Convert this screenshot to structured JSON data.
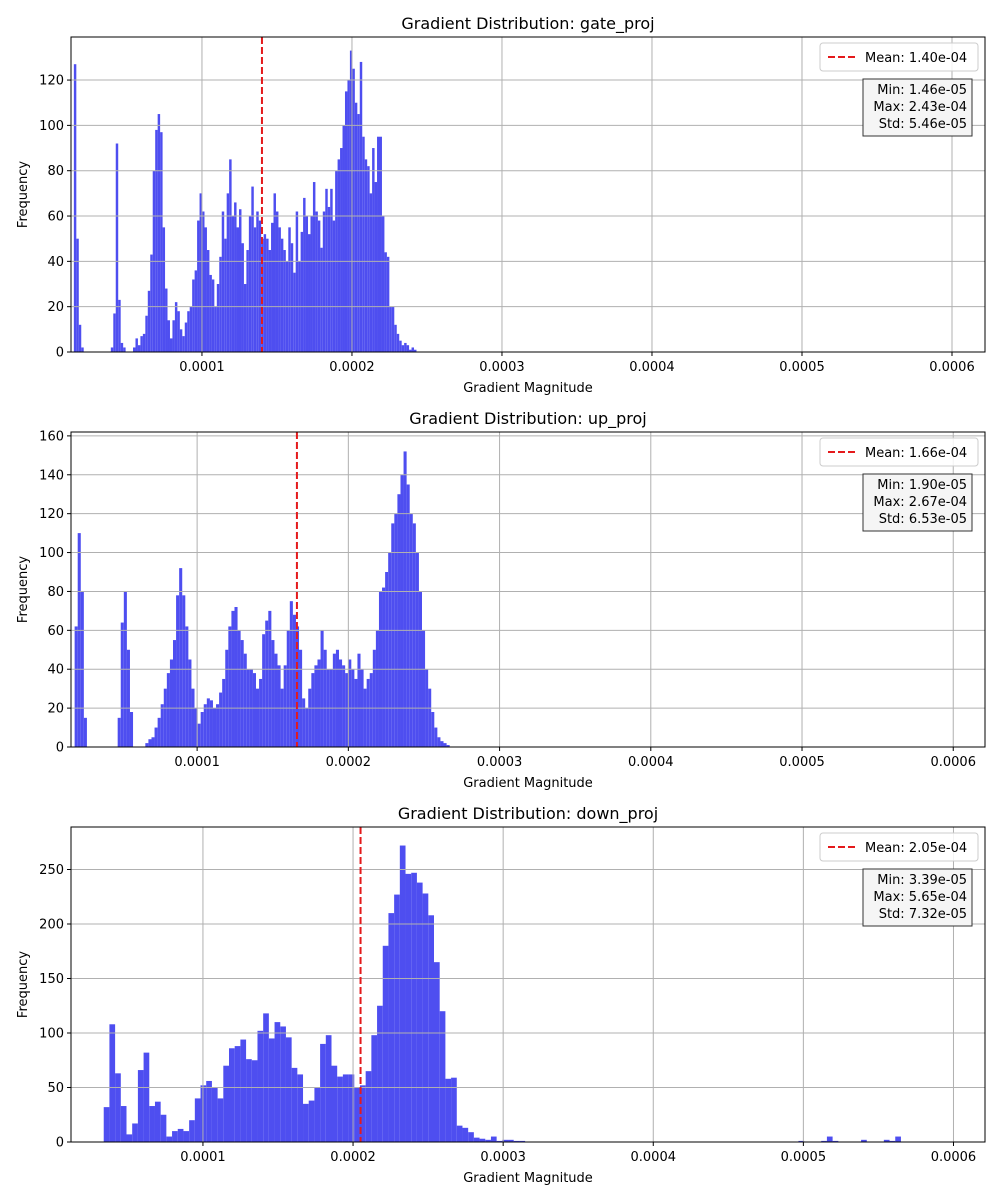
{
  "chart_data": [
    {
      "type": "bar",
      "title": "Gradient Distribution: gate_proj",
      "xlabel": "Gradient Magnitude",
      "ylabel": "Frequency",
      "xlim": [
        1.27e-05,
        0.000622
      ],
      "ylim": [
        0,
        139
      ],
      "xticks": [
        {
          "value": 0.0001,
          "label": "0.0001"
        },
        {
          "value": 0.0002,
          "label": "0.0002"
        },
        {
          "value": 0.0003,
          "label": "0.0003"
        },
        {
          "value": 0.0004,
          "label": "0.0004"
        },
        {
          "value": 0.0005,
          "label": "0.0005"
        },
        {
          "value": 0.0006,
          "label": "0.0006"
        }
      ],
      "yticks": [
        {
          "value": 0,
          "label": "0"
        },
        {
          "value": 20,
          "label": "20"
        },
        {
          "value": 40,
          "label": "40"
        },
        {
          "value": 60,
          "label": "60"
        },
        {
          "value": 80,
          "label": "80"
        },
        {
          "value": 100,
          "label": "100"
        },
        {
          "value": 120,
          "label": "120"
        }
      ],
      "grid": true,
      "bar_color": "#4a4af0",
      "mean": {
        "value": 0.00014,
        "label": "Mean: 1.40e-04",
        "color": "#e41a1c"
      },
      "legend_position": "upper right",
      "stats_box": [
        "Min: 1.46e-05",
        "Max: 2.43e-04",
        "Std: 5.46e-05"
      ],
      "hist": {
        "start": 1.46e-05,
        "end": 0.000243,
        "counts": [
          127,
          50,
          12,
          2,
          0,
          0,
          0,
          0,
          0,
          0,
          0,
          0,
          0,
          0,
          0,
          2,
          17,
          92,
          23,
          4,
          2,
          0,
          0,
          0,
          2,
          6,
          3,
          7,
          8,
          16,
          27,
          43,
          80,
          98,
          105,
          97,
          55,
          28,
          14,
          6,
          14,
          22,
          18,
          10,
          7,
          13,
          18,
          20,
          32,
          36,
          58,
          70,
          62,
          55,
          45,
          34,
          32,
          20,
          30,
          42,
          62,
          50,
          70,
          85,
          60,
          66,
          55,
          63,
          48,
          30,
          45,
          60,
          73,
          55,
          62,
          58,
          50,
          52,
          50,
          45,
          57,
          70,
          62,
          55,
          50,
          45,
          40,
          55,
          48,
          35,
          62,
          40,
          53,
          68,
          60,
          52,
          60,
          75,
          62,
          58,
          46,
          62,
          72,
          64,
          72,
          58,
          80,
          85,
          90,
          100,
          115,
          120,
          133,
          125,
          110,
          105,
          128,
          95,
          85,
          82,
          70,
          90,
          75,
          95,
          95,
          60,
          44,
          42,
          20,
          20,
          12,
          8,
          5,
          3,
          4,
          3,
          1,
          2,
          1
        ]
      }
    },
    {
      "type": "bar",
      "title": "Gradient Distribution: up_proj",
      "xlabel": "Gradient Magnitude",
      "ylabel": "Frequency",
      "xlim": [
        1.66e-05,
        0.000621
      ],
      "ylim": [
        0,
        162
      ],
      "xticks": [
        {
          "value": 0.0001,
          "label": "0.0001"
        },
        {
          "value": 0.0002,
          "label": "0.0002"
        },
        {
          "value": 0.0003,
          "label": "0.0003"
        },
        {
          "value": 0.0004,
          "label": "0.0004"
        },
        {
          "value": 0.0005,
          "label": "0.0005"
        },
        {
          "value": 0.0006,
          "label": "0.0006"
        }
      ],
      "yticks": [
        {
          "value": 0,
          "label": "0"
        },
        {
          "value": 20,
          "label": "20"
        },
        {
          "value": 40,
          "label": "40"
        },
        {
          "value": 60,
          "label": "60"
        },
        {
          "value": 80,
          "label": "80"
        },
        {
          "value": 100,
          "label": "100"
        },
        {
          "value": 120,
          "label": "120"
        },
        {
          "value": 140,
          "label": "140"
        },
        {
          "value": 160,
          "label": "160"
        }
      ],
      "grid": true,
      "bar_color": "#4a4af0",
      "mean": {
        "value": 0.000166,
        "label": "Mean: 1.66e-04",
        "color": "#e41a1c"
      },
      "legend_position": "upper right",
      "stats_box": [
        "Min: 1.90e-05",
        "Max: 2.67e-04",
        "Std: 6.53e-05"
      ],
      "hist": {
        "start": 1.9e-05,
        "end": 0.000267,
        "counts": [
          62,
          110,
          80,
          15,
          0,
          0,
          0,
          0,
          0,
          0,
          0,
          0,
          0,
          0,
          15,
          64,
          80,
          50,
          18,
          0,
          0,
          0,
          0,
          2,
          4,
          5,
          10,
          15,
          22,
          30,
          38,
          45,
          55,
          78,
          92,
          78,
          62,
          45,
          30,
          20,
          12,
          18,
          22,
          25,
          24,
          20,
          22,
          28,
          35,
          50,
          62,
          70,
          72,
          60,
          55,
          48,
          40,
          40,
          38,
          30,
          35,
          58,
          65,
          70,
          55,
          48,
          42,
          30,
          42,
          60,
          75,
          68,
          62,
          50,
          25,
          20,
          30,
          38,
          42,
          45,
          60,
          50,
          40,
          40,
          48,
          50,
          45,
          42,
          38,
          45,
          40,
          35,
          48,
          40,
          30,
          35,
          38,
          50,
          60,
          80,
          82,
          90,
          100,
          115,
          120,
          130,
          140,
          152,
          135,
          120,
          115,
          100,
          80,
          60,
          40,
          30,
          18,
          10,
          5,
          3,
          2,
          1
        ]
      }
    },
    {
      "type": "bar",
      "title": "Gradient Distribution: down_proj",
      "xlabel": "Gradient Magnitude",
      "ylabel": "Frequency",
      "xlim": [
        1.21e-05,
        0.000621
      ],
      "ylim": [
        0,
        289
      ],
      "xticks": [
        {
          "value": 0.0001,
          "label": "0.0001"
        },
        {
          "value": 0.0002,
          "label": "0.0002"
        },
        {
          "value": 0.0003,
          "label": "0.0003"
        },
        {
          "value": 0.0004,
          "label": "0.0004"
        },
        {
          "value": 0.0005,
          "label": "0.0005"
        },
        {
          "value": 0.0006,
          "label": "0.0006"
        }
      ],
      "yticks": [
        {
          "value": 0,
          "label": "0"
        },
        {
          "value": 50,
          "label": "50"
        },
        {
          "value": 100,
          "label": "100"
        },
        {
          "value": 150,
          "label": "150"
        },
        {
          "value": 200,
          "label": "200"
        },
        {
          "value": 250,
          "label": "250"
        }
      ],
      "grid": true,
      "bar_color": "#4a4af0",
      "mean": {
        "value": 0.000205,
        "label": "Mean: 2.05e-04",
        "color": "#e41a1c"
      },
      "legend_position": "upper right",
      "stats_box": [
        "Min: 3.39e-05",
        "Max: 5.65e-04",
        "Std: 7.32e-05"
      ],
      "hist": {
        "start": 3.39e-05,
        "end": 0.000565,
        "counts": [
          32,
          108,
          63,
          33,
          7,
          17,
          66,
          82,
          33,
          37,
          25,
          5,
          10,
          12,
          10,
          20,
          40,
          52,
          56,
          50,
          40,
          70,
          86,
          88,
          94,
          76,
          75,
          102,
          118,
          95,
          110,
          106,
          96,
          68,
          62,
          35,
          38,
          50,
          90,
          98,
          70,
          60,
          62,
          62,
          50,
          52,
          65,
          98,
          125,
          180,
          210,
          227,
          272,
          246,
          247,
          238,
          228,
          208,
          165,
          120,
          58,
          59,
          15,
          13,
          9,
          4,
          3,
          2,
          5,
          1,
          2,
          2,
          1,
          1,
          0,
          0,
          0,
          0,
          0,
          0,
          0,
          0,
          0,
          0,
          0,
          0,
          0,
          0,
          0,
          0,
          0,
          0,
          0,
          0,
          0,
          0,
          0,
          0,
          0,
          0,
          0,
          0,
          0,
          0,
          0,
          0,
          0,
          0,
          0,
          0,
          0,
          0,
          0,
          0,
          0,
          0,
          0,
          0,
          0,
          0,
          0,
          0,
          1,
          0,
          0,
          0,
          1,
          5,
          1,
          0,
          0,
          0,
          0,
          2,
          0,
          0,
          0,
          2,
          1,
          5
        ]
      }
    }
  ]
}
